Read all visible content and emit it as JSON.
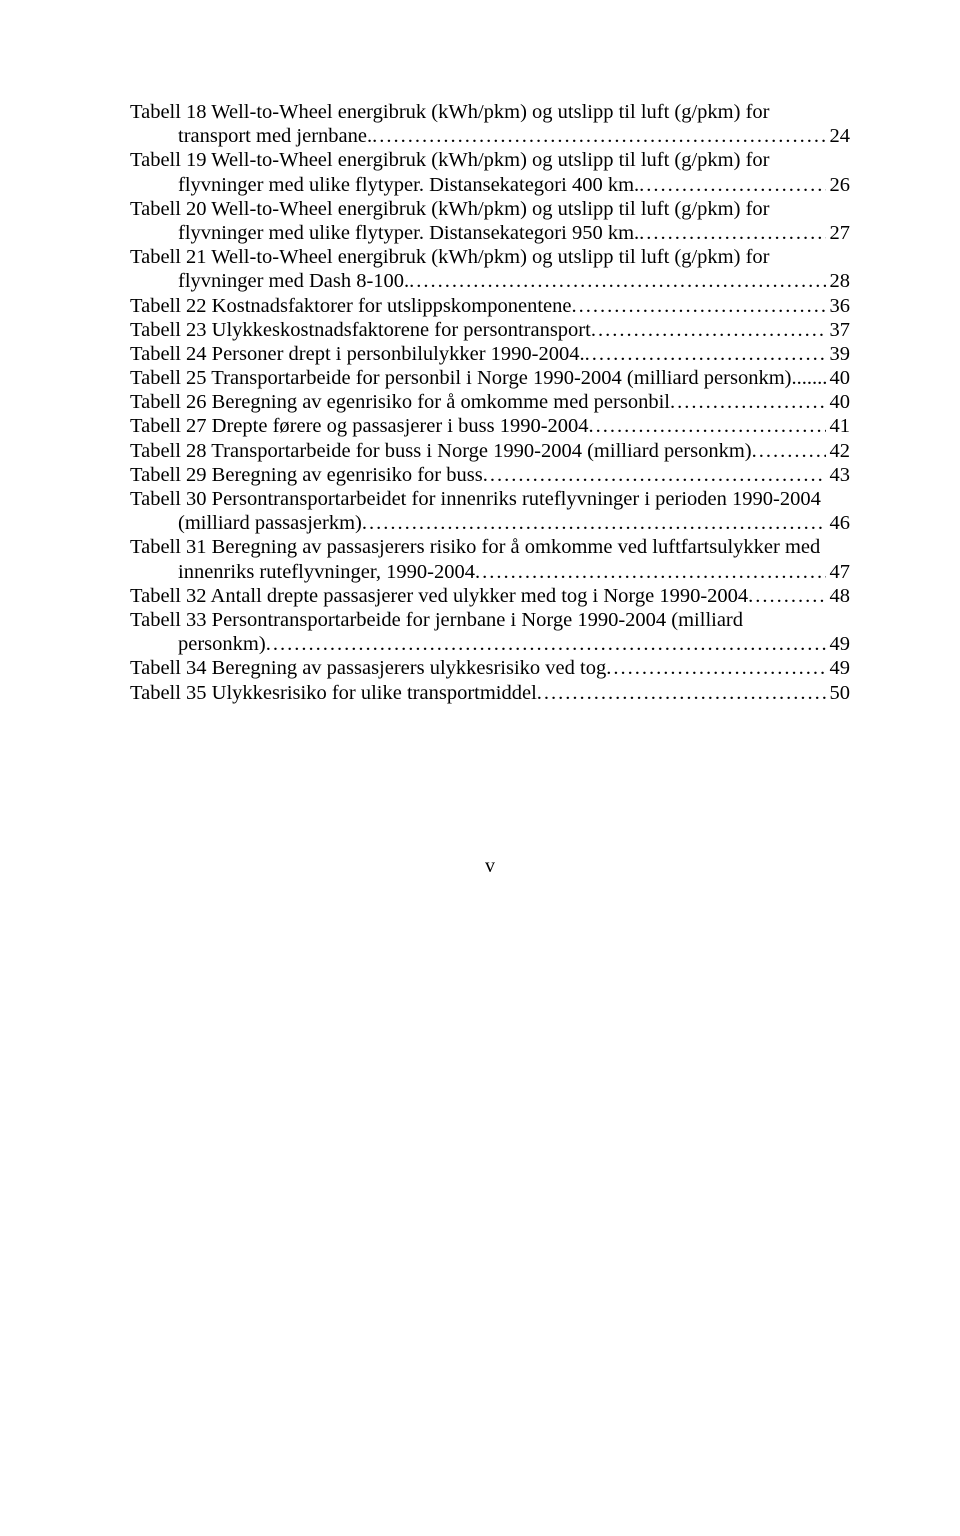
{
  "entries": [
    {
      "lines": [
        "Tabell 18 Well-to-Wheel energibruk (kWh/pkm) og utslipp til luft (g/pkm) for"
      ],
      "lastLine": "transport med jernbane.",
      "page": "24"
    },
    {
      "lines": [
        "Tabell 19 Well-to-Wheel energibruk (kWh/pkm) og utslipp til luft (g/pkm) for"
      ],
      "lastLine": "flyvninger med ulike flytyper. Distansekategori 400 km.",
      "page": "26"
    },
    {
      "lines": [
        "Tabell 20 Well-to-Wheel energibruk (kWh/pkm) og utslipp til luft (g/pkm) for"
      ],
      "lastLine": "flyvninger med ulike flytyper. Distansekategori 950 km.",
      "page": "27"
    },
    {
      "lines": [
        "Tabell 21 Well-to-Wheel energibruk (kWh/pkm) og utslipp til luft (g/pkm) for"
      ],
      "lastLine": "flyvninger med Dash 8-100.",
      "page": "28"
    },
    {
      "lines": [],
      "lastLine": "Tabell 22 Kostnadsfaktorer for utslippskomponentene",
      "page": "36"
    },
    {
      "lines": [],
      "lastLine": "Tabell 23 Ulykkeskostnadsfaktorene for persontransport",
      "page": "37"
    },
    {
      "lines": [],
      "lastLine": "Tabell 24 Personer drept i personbilulykker 1990-2004.",
      "page": "39"
    },
    {
      "lines": [],
      "lastLine": "Tabell 25 Transportarbeide for personbil i Norge 1990-2004 (milliard personkm).",
      "page": "40",
      "tightDots": true
    },
    {
      "lines": [],
      "lastLine": "Tabell 26 Beregning av egenrisiko for å omkomme med personbil",
      "page": "40"
    },
    {
      "lines": [],
      "lastLine": "Tabell 27 Drepte førere og passasjerer i buss 1990-2004",
      "page": "41"
    },
    {
      "lines": [],
      "lastLine": "Tabell 28 Transportarbeide for buss i Norge 1990-2004 (milliard personkm)",
      "page": "42"
    },
    {
      "lines": [],
      "lastLine": "Tabell 29 Beregning av egenrisiko for buss",
      "page": "43"
    },
    {
      "lines": [
        "Tabell 30 Persontransportarbeidet for innenriks ruteflyvninger i perioden 1990-2004"
      ],
      "lastLine": "(milliard passasjerkm)",
      "page": "46"
    },
    {
      "lines": [
        "Tabell 31 Beregning av passasjerers risiko for å omkomme ved luftfartsulykker med"
      ],
      "lastLine": "innenriks ruteflyvninger, 1990-2004",
      "page": "47"
    },
    {
      "lines": [],
      "lastLine": "Tabell 32 Antall drepte passasjerer ved ulykker med tog i Norge 1990-2004",
      "page": "48"
    },
    {
      "lines": [
        "Tabell 33 Persontransportarbeide for jernbane i Norge 1990-2004 (milliard"
      ],
      "lastLine": "personkm)",
      "page": "49"
    },
    {
      "lines": [],
      "lastLine": "Tabell 34 Beregning av passasjerers ulykkesrisiko ved tog",
      "page": "49"
    },
    {
      "lines": [],
      "lastLine": "Tabell 35 Ulykkesrisiko for ulike transportmiddel",
      "page": "50"
    }
  ],
  "pageNumber": "v"
}
